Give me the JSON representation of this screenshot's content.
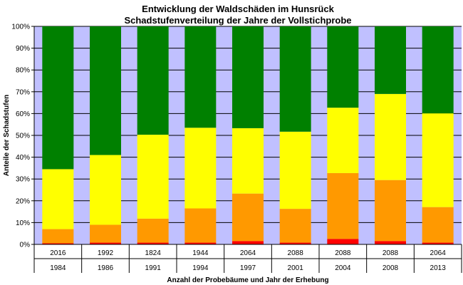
{
  "chart_data": {
    "type": "bar",
    "stacked": true,
    "title": "Entwicklung der Waldschäden im Hunsrück",
    "subtitle": "Schadstufenverteilung der Jahre der Vollstichprobe",
    "xlabel": "Anzahl der Probebäume und Jahr der Erhebung",
    "ylabel": "Anteile der Schadstufen",
    "ylim": [
      0,
      100
    ],
    "y_ticks": [
      "0%",
      "10%",
      "20%",
      "30%",
      "40%",
      "50%",
      "60%",
      "70%",
      "80%",
      "90%",
      "100%"
    ],
    "grid": true,
    "plot_background": "#c0c0ff",
    "categories": [
      "1984",
      "1986",
      "1991",
      "1994",
      "1997",
      "2001",
      "2004",
      "2008",
      "2013"
    ],
    "sample_counts": [
      "2016",
      "1992",
      "1824",
      "1944",
      "2064",
      "2088",
      "2088",
      "2088",
      "2064"
    ],
    "series": [
      {
        "color": "#ff0000",
        "values": [
          0.5,
          0.8,
          0.8,
          0.8,
          1.5,
          0.8,
          2.5,
          1.5,
          0.8
        ]
      },
      {
        "color": "#ff9900",
        "values": [
          6.5,
          8.2,
          11.0,
          15.7,
          21.8,
          15.5,
          30.2,
          28.0,
          16.3
        ]
      },
      {
        "color": "#ffff00",
        "values": [
          27.5,
          32.0,
          38.5,
          37.0,
          30.0,
          35.4,
          30.0,
          39.5,
          43.0
        ]
      },
      {
        "color": "#008000",
        "values": [
          65.5,
          59.0,
          49.7,
          46.5,
          46.7,
          48.3,
          37.3,
          31.0,
          39.9
        ]
      }
    ]
  }
}
